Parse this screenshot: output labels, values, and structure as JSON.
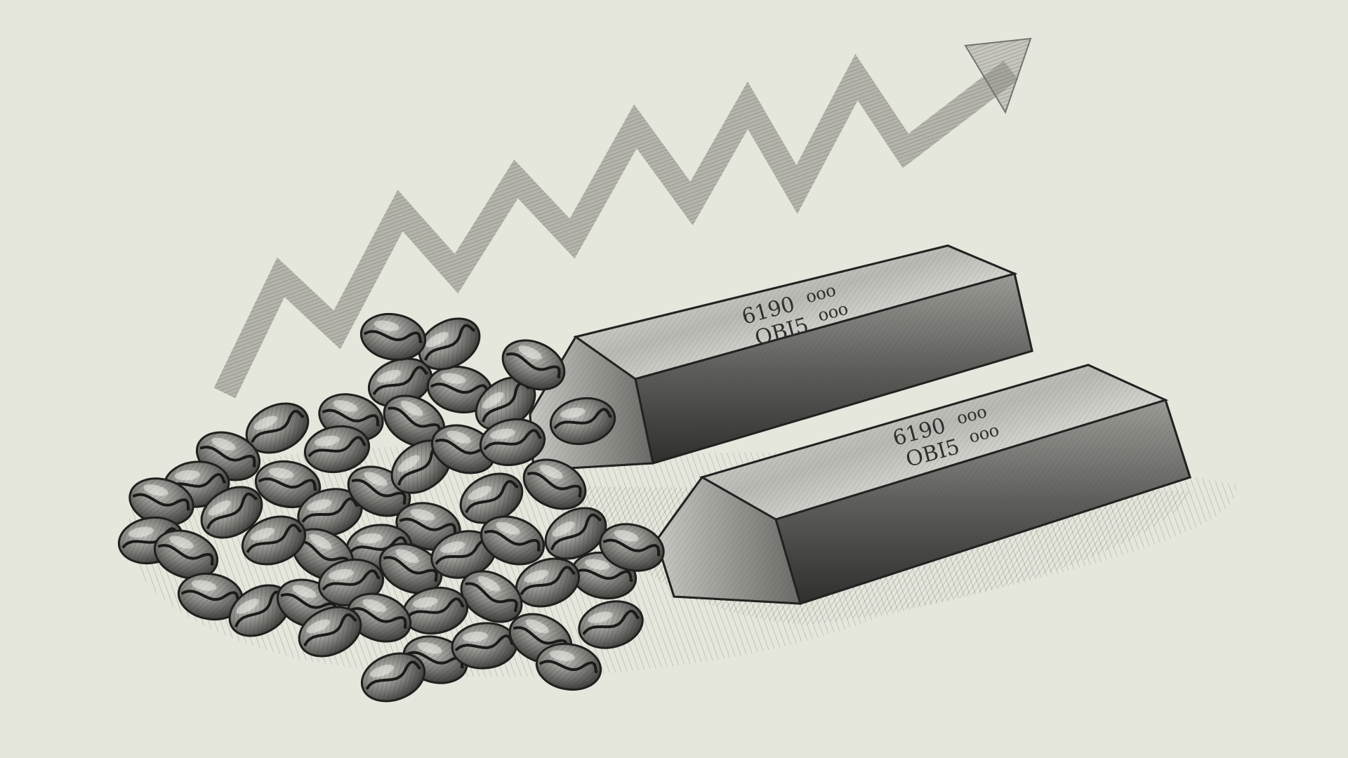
{
  "illustration": {
    "palette": {
      "paper": "#e6e7dc",
      "ink": "#2a2a2a",
      "trend_ink": "#8f8f89",
      "metal_light": "#d9d9d4",
      "metal_dark": "#4a4a48",
      "bean_dark": "#3c3c3a",
      "bean_light": "#9a9a95"
    },
    "trend_arrow": {
      "icon": "upward-zigzag-trend-arrow",
      "direction": "up-right"
    },
    "bars": [
      {
        "stamp_line_1": "6190",
        "stamp_line_2": "OBI5",
        "stamp_line_3": "ooo",
        "stamp_line_4": "ooo"
      },
      {
        "stamp_line_1": "6190",
        "stamp_line_2": "OBI5",
        "stamp_line_3": "ooo",
        "stamp_line_4": "ooo"
      }
    ],
    "coffee_bean_count_visible": 50
  }
}
